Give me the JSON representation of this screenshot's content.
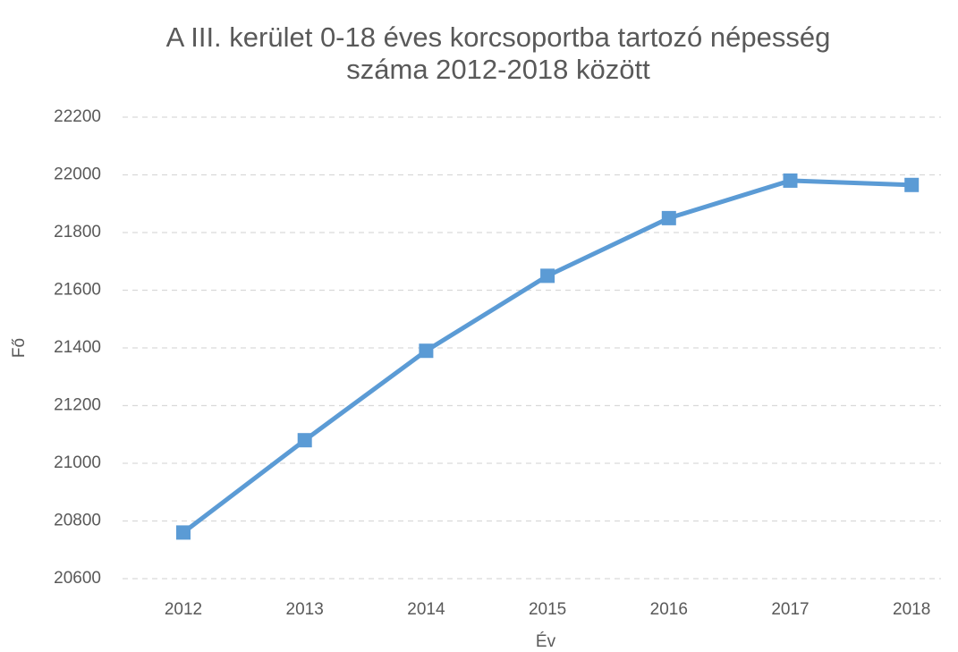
{
  "chart_data": {
    "type": "line",
    "title": [
      "A III.  kerület 0-18 éves korcsoportba tartozó népesség",
      "száma 2012-2018 között"
    ],
    "x_label": "Év",
    "y_label": "Fő",
    "categories": [
      "2012",
      "2013",
      "2014",
      "2015",
      "2016",
      "2017",
      "2018"
    ],
    "series": [
      {
        "name": "Fő",
        "color": "#5b9bd5",
        "values": [
          20760,
          21080,
          21390,
          21650,
          21850,
          21980,
          21965
        ]
      }
    ],
    "ylim": [
      20600,
      22200
    ],
    "yticks": [
      20600,
      20800,
      21000,
      21200,
      21400,
      21600,
      21800,
      22000,
      22200
    ],
    "grid": true
  }
}
